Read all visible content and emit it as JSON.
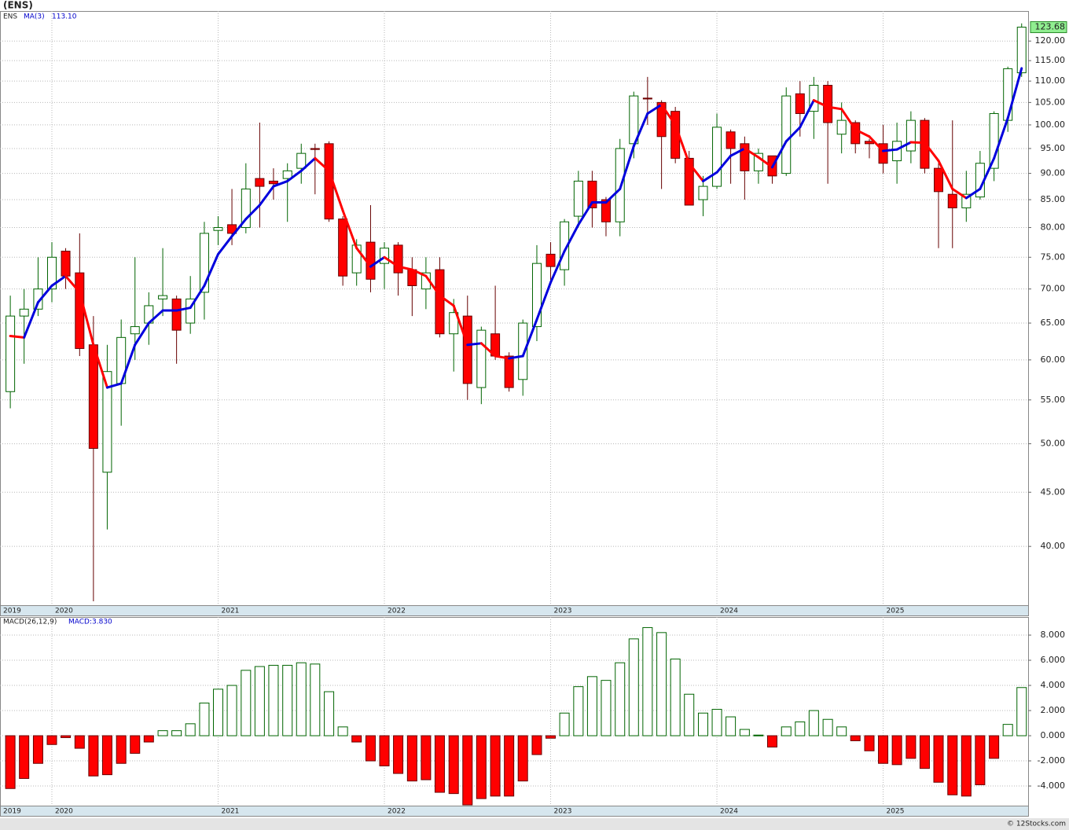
{
  "chart_data": [
    {
      "type": "candlestick",
      "title": "(ENS)",
      "symbol": "ENS",
      "indicator": "MA(3)",
      "indicator_value_label": "113.10",
      "x": [
        2019.75,
        2019.833,
        2019.917,
        2020,
        2020.083,
        2020.167,
        2020.25,
        2020.333,
        2020.417,
        2020.5,
        2020.583,
        2020.667,
        2020.75,
        2020.833,
        2020.917,
        2021,
        2021.083,
        2021.167,
        2021.25,
        2021.333,
        2021.417,
        2021.5,
        2021.583,
        2021.667,
        2021.75,
        2021.833,
        2021.917,
        2022,
        2022.083,
        2022.167,
        2022.25,
        2022.333,
        2022.417,
        2022.5,
        2022.583,
        2022.667,
        2022.75,
        2022.833,
        2022.917,
        2023,
        2023.083,
        2023.167,
        2023.25,
        2023.333,
        2023.417,
        2023.5,
        2023.583,
        2023.667,
        2023.75,
        2023.833,
        2023.917,
        2024,
        2024.083,
        2024.167,
        2024.25,
        2024.333,
        2024.417,
        2024.5,
        2024.583,
        2024.667,
        2024.75,
        2024.833,
        2024.917,
        2025,
        2025.083,
        2025.167,
        2025.25,
        2025.333,
        2025.417,
        2025.5,
        2025.583,
        2025.667,
        2025.75,
        2025.833
      ],
      "open": [
        56,
        66,
        67,
        70,
        76,
        72.5,
        62,
        47,
        57,
        63.5,
        65,
        68.5,
        68.5,
        65,
        69.5,
        79.5,
        80.5,
        80,
        89,
        88.5,
        89,
        91,
        95,
        96,
        81.5,
        72.5,
        77.5,
        74,
        77,
        73,
        70,
        73,
        63.5,
        66,
        56.5,
        63.5,
        60.5,
        57.5,
        64.5,
        75.5,
        73,
        82,
        88.5,
        85,
        81,
        96,
        106,
        105,
        103,
        93,
        85,
        87.5,
        98.5,
        96,
        90.5,
        93.5,
        90,
        107,
        103,
        109,
        98,
        100.5,
        96.5,
        96,
        92.5,
        94.5,
        101,
        91,
        86,
        83.5,
        85.5,
        91,
        101,
        112
      ],
      "high": [
        69,
        70,
        75,
        77.5,
        76.5,
        79,
        66,
        62,
        65.5,
        75,
        69.5,
        76.5,
        69,
        72,
        81,
        82,
        87,
        92,
        100.5,
        91,
        92,
        96,
        96,
        96.5,
        82,
        78,
        84,
        77.5,
        77.5,
        75,
        75,
        75,
        68.5,
        69,
        64.5,
        70.5,
        61,
        65.5,
        77,
        77.5,
        81.5,
        90.5,
        90.5,
        85.5,
        97,
        107.5,
        111,
        105.5,
        104,
        94.5,
        89.5,
        102.5,
        99,
        97.5,
        95,
        93.5,
        108.5,
        110,
        111,
        110,
        105,
        101,
        97,
        100,
        100.5,
        103,
        101.5,
        92,
        101,
        90.5,
        94.5,
        103,
        113.5,
        124.7
      ],
      "low": [
        54,
        59.5,
        66,
        68,
        70,
        60.5,
        35.5,
        41.5,
        52,
        60,
        62,
        66,
        59.5,
        63.5,
        65.5,
        77,
        77,
        79,
        80,
        85,
        81,
        88,
        86,
        81,
        70.5,
        70.5,
        69.5,
        70,
        69,
        66,
        67,
        63,
        58.5,
        55,
        54.5,
        60,
        56,
        55.5,
        62.5,
        71,
        70.5,
        80,
        80,
        78.5,
        78.5,
        93,
        100,
        87,
        92,
        84,
        82,
        87,
        88,
        85,
        88,
        88,
        89.5,
        97.5,
        97,
        88,
        94,
        94,
        93,
        90,
        88,
        92,
        90,
        76.5,
        76.5,
        81,
        85,
        88.5,
        98.5,
        111
      ],
      "close": [
        66,
        67,
        70,
        75,
        72,
        61.5,
        49.5,
        58.5,
        63,
        64.5,
        67.5,
        69,
        64,
        68.5,
        79,
        80,
        79,
        87,
        87.5,
        88,
        90.5,
        94,
        94.8,
        81.5,
        72,
        77,
        71.5,
        76.5,
        72.5,
        70.5,
        72.5,
        63.5,
        66.5,
        57,
        64,
        60.5,
        56.5,
        65,
        74,
        73.5,
        81,
        88.5,
        83.5,
        81,
        95,
        106.5,
        105.8,
        97.5,
        93,
        84,
        87.5,
        99.5,
        95,
        90.5,
        94,
        89.5,
        106.5,
        102.5,
        109,
        100.5,
        101,
        96,
        96,
        92,
        96.5,
        101,
        91,
        86.5,
        83.5,
        86,
        92,
        102.5,
        113,
        123.68
      ],
      "last_label": "123.68",
      "up_color": "#006400",
      "down_color": "#ff0000",
      "ma": {
        "values": [
          63.2,
          63,
          68,
          70.5,
          72,
          69.5,
          62,
          56.5,
          57,
          62,
          65,
          66.8,
          66.8,
          67.2,
          70.5,
          75.5,
          78.5,
          81.5,
          84,
          87.5,
          88.5,
          90.5,
          93,
          90.5,
          83,
          76.5,
          73.5,
          75,
          73.5,
          73,
          72,
          69,
          67.5,
          62,
          62.2,
          60.5,
          60.2,
          60.5,
          65.5,
          71,
          76,
          80.5,
          84.5,
          84.5,
          87,
          95.5,
          102.5,
          104.5,
          100,
          92,
          88.5,
          90.2,
          93.5,
          95,
          93.2,
          91.2,
          96.5,
          99.5,
          105.5,
          104,
          103.5,
          99,
          97.5,
          94.5,
          94.8,
          96.3,
          96.2,
          92.5,
          87,
          85.3,
          87,
          93,
          101.5,
          113.1
        ],
        "up_color": "#0000dd",
        "down_color": "#ff0000"
      },
      "xlim": [
        2019.688,
        2025.872
      ],
      "xticks": [
        {
          "value": 2019.688,
          "label": "2019"
        },
        2020,
        2021,
        2022,
        2023,
        2024,
        2025
      ],
      "ylim": [
        35.2,
        128.1
      ],
      "yticks": [
        {
          "value": 40,
          "label": "40.00"
        },
        {
          "value": 45,
          "label": "45.00"
        },
        {
          "value": 50,
          "label": "50.00"
        },
        {
          "value": 55,
          "label": "55.00"
        },
        {
          "value": 60,
          "label": "60.00"
        },
        {
          "value": 65,
          "label": "65.00"
        },
        {
          "value": 70,
          "label": "70.00"
        },
        {
          "value": 75,
          "label": "75.00"
        },
        {
          "value": 80,
          "label": "80.00"
        },
        {
          "value": 85,
          "label": "85.00"
        },
        {
          "value": 90,
          "label": "90.00"
        },
        {
          "value": 95,
          "label": "95.00"
        },
        {
          "value": 100,
          "label": "100.00"
        },
        {
          "value": 105,
          "label": "105.00"
        },
        {
          "value": 110,
          "label": "110.00"
        },
        {
          "value": 115,
          "label": "115.00"
        },
        {
          "value": 120,
          "label": "120.00"
        }
      ],
      "log_scale": true,
      "grid": true
    },
    {
      "type": "bar",
      "indicator": "MACD(26,12,9)",
      "indicator_value_label": "MACD:3.830",
      "x": [
        2019.75,
        2019.833,
        2019.917,
        2020,
        2020.083,
        2020.167,
        2020.25,
        2020.333,
        2020.417,
        2020.5,
        2020.583,
        2020.667,
        2020.75,
        2020.833,
        2020.917,
        2021,
        2021.083,
        2021.167,
        2021.25,
        2021.333,
        2021.417,
        2021.5,
        2021.583,
        2021.667,
        2021.75,
        2021.833,
        2021.917,
        2022,
        2022.083,
        2022.167,
        2022.25,
        2022.333,
        2022.417,
        2022.5,
        2022.583,
        2022.667,
        2022.75,
        2022.833,
        2022.917,
        2023,
        2023.083,
        2023.167,
        2023.25,
        2023.333,
        2023.417,
        2023.5,
        2023.583,
        2023.667,
        2023.75,
        2023.833,
        2023.917,
        2024,
        2024.083,
        2024.167,
        2024.25,
        2024.333,
        2024.417,
        2024.5,
        2024.583,
        2024.667,
        2024.75,
        2024.833,
        2024.917,
        2025,
        2025.083,
        2025.167,
        2025.25,
        2025.333,
        2025.417,
        2025.5,
        2025.583,
        2025.667,
        2025.75,
        2025.833
      ],
      "values": [
        -4.2,
        -3.4,
        -2.2,
        -0.7,
        -0.15,
        -1.0,
        -3.2,
        -3.1,
        -2.2,
        -1.4,
        -0.5,
        0.4,
        0.4,
        0.95,
        2.6,
        3.7,
        4.0,
        5.2,
        5.5,
        5.6,
        5.6,
        5.8,
        5.7,
        3.5,
        0.7,
        -0.5,
        -2.0,
        -2.4,
        -3.0,
        -3.6,
        -3.5,
        -4.5,
        -4.6,
        -5.5,
        -5.0,
        -4.8,
        -4.8,
        -3.6,
        -1.5,
        -0.2,
        1.8,
        3.9,
        4.7,
        4.4,
        5.8,
        7.7,
        8.6,
        8.2,
        6.1,
        3.3,
        1.8,
        2.1,
        1.5,
        0.5,
        0.05,
        -0.9,
        0.7,
        1.1,
        2.0,
        1.3,
        0.7,
        -0.4,
        -1.2,
        -2.2,
        -2.3,
        -1.8,
        -2.6,
        -3.7,
        -4.7,
        -4.8,
        -3.9,
        -1.8,
        0.9,
        3.83
      ],
      "up_color": "#006400",
      "down_color": "#ff0000",
      "xlim": [
        2019.688,
        2025.872
      ],
      "xticks": [
        {
          "value": 2019.688,
          "label": "2019"
        },
        2020,
        2021,
        2022,
        2023,
        2024,
        2025
      ],
      "ylim": [
        -5.56,
        9.44
      ],
      "yticks": [
        {
          "value": -4,
          "label": "-4.000"
        },
        {
          "value": -2,
          "label": "-2.000"
        },
        {
          "value": 0,
          "label": "0.000"
        },
        {
          "value": 2,
          "label": "2.000"
        },
        {
          "value": 4,
          "label": "4.000"
        },
        {
          "value": 6,
          "label": "6.000"
        },
        {
          "value": 8,
          "label": "8.000"
        }
      ],
      "grid": true
    },
    {
      "footer": "© 12Stocks.com"
    }
  ]
}
